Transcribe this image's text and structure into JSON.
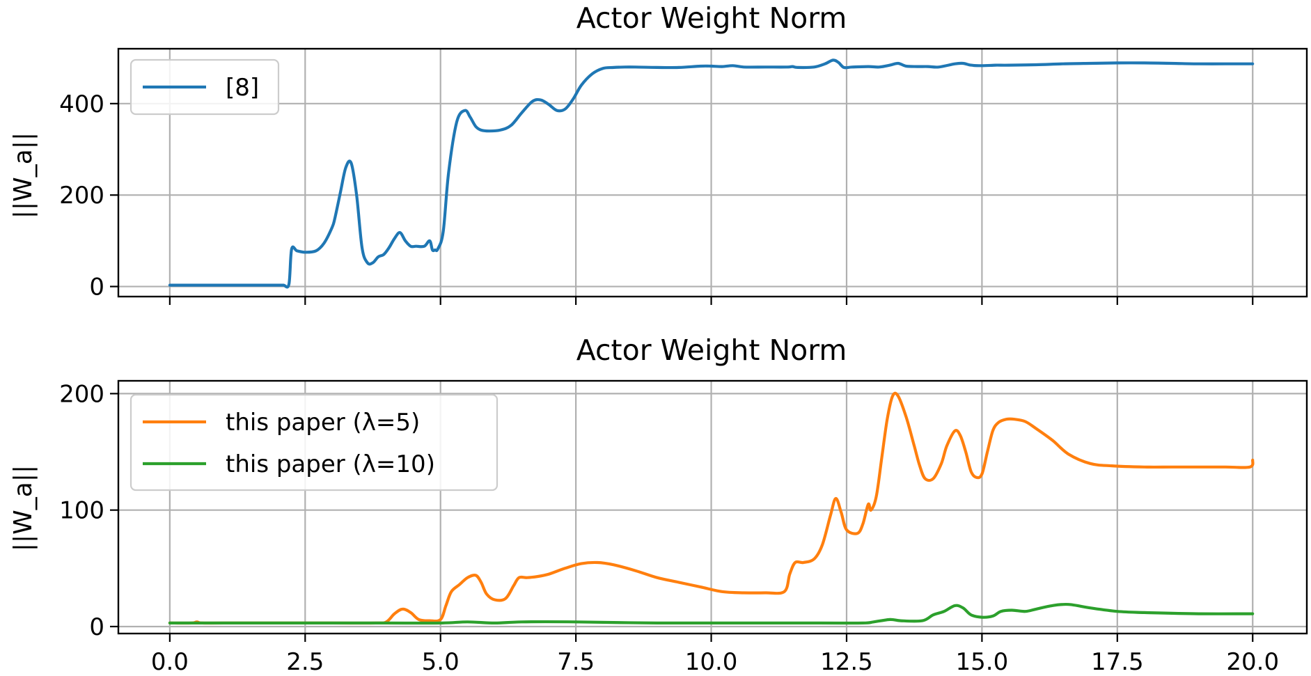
{
  "chart_data": [
    {
      "type": "line",
      "title": "Actor Weight Norm",
      "ylabel": "||W_a||",
      "xlabel": "",
      "xlim": [
        -0.95,
        21.0
      ],
      "ylim": [
        -22,
        520
      ],
      "xticks": [
        0.0,
        2.5,
        5.0,
        7.5,
        10.0,
        12.5,
        15.0,
        17.5,
        20.0
      ],
      "xtick_labels": [],
      "yticks": [
        0,
        200,
        400
      ],
      "ytick_labels": [
        "0",
        "200",
        "400"
      ],
      "grid": true,
      "legend": "top-left",
      "series": [
        {
          "name": "[8]",
          "color": "#1f77b4",
          "x": [
            0.0,
            1.0,
            2.0,
            2.1,
            2.2,
            2.25,
            2.35,
            2.5,
            2.7,
            2.85,
            3.0,
            3.05,
            3.15,
            3.25,
            3.35,
            3.45,
            3.55,
            3.65,
            3.75,
            3.85,
            3.95,
            4.05,
            4.15,
            4.25,
            4.35,
            4.45,
            4.55,
            4.7,
            4.8,
            4.85,
            4.9,
            4.95,
            5.05,
            5.15,
            5.3,
            5.45,
            5.55,
            5.65,
            5.75,
            5.9,
            6.1,
            6.3,
            6.5,
            6.7,
            6.85,
            7.0,
            7.15,
            7.3,
            7.45,
            7.6,
            7.8,
            8.0,
            8.2,
            8.4,
            8.6,
            9.0,
            9.4,
            9.8,
            10.0,
            10.2,
            10.4,
            10.6,
            11.0,
            11.4,
            11.5,
            11.6,
            11.9,
            12.1,
            12.25,
            12.35,
            12.45,
            12.6,
            12.9,
            13.1,
            13.3,
            13.45,
            13.6,
            13.8,
            14.0,
            14.2,
            14.5,
            14.65,
            14.8,
            15.0,
            15.25,
            15.5,
            16.0,
            16.5,
            17.0,
            17.5,
            18.0,
            18.5,
            19.0,
            19.5,
            20.0
          ],
          "y": [
            3,
            3,
            3,
            3,
            5,
            82,
            78,
            75,
            78,
            95,
            130,
            150,
            205,
            260,
            270,
            200,
            85,
            52,
            52,
            65,
            70,
            85,
            105,
            118,
            100,
            88,
            88,
            88,
            100,
            80,
            80,
            82,
            120,
            250,
            360,
            385,
            370,
            350,
            342,
            340,
            342,
            352,
            380,
            405,
            408,
            398,
            385,
            388,
            410,
            440,
            465,
            477,
            479,
            480,
            480,
            479,
            479,
            482,
            482,
            481,
            483,
            480,
            480,
            480,
            481,
            479,
            480,
            487,
            495,
            490,
            479,
            480,
            481,
            480,
            484,
            488,
            482,
            481,
            481,
            480,
            487,
            488,
            484,
            483,
            484,
            484,
            485,
            487,
            488,
            489,
            489,
            488,
            487,
            487,
            487
          ]
        }
      ]
    },
    {
      "type": "line",
      "title": "Actor Weight Norm",
      "ylabel": "||W_a||",
      "xlabel": "",
      "xlim": [
        -0.95,
        21.0
      ],
      "ylim": [
        -6,
        211
      ],
      "xticks": [
        0.0,
        2.5,
        5.0,
        7.5,
        10.0,
        12.5,
        15.0,
        17.5,
        20.0
      ],
      "xtick_labels": [
        "0.0",
        "2.5",
        "5.0",
        "7.5",
        "10.0",
        "12.5",
        "15.0",
        "17.5",
        "20.0"
      ],
      "yticks": [
        0,
        100,
        200
      ],
      "ytick_labels": [
        "0",
        "100",
        "200"
      ],
      "grid": true,
      "legend": "top-left",
      "series": [
        {
          "name": "this paper (λ=5)",
          "color": "#ff7f0e",
          "x": [
            0.0,
            0.4,
            0.5,
            0.6,
            1.0,
            2.0,
            3.0,
            3.8,
            4.0,
            4.15,
            4.3,
            4.45,
            4.6,
            4.8,
            5.0,
            5.1,
            5.2,
            5.35,
            5.5,
            5.65,
            5.75,
            5.85,
            6.0,
            6.2,
            6.35,
            6.45,
            6.6,
            6.8,
            7.0,
            7.3,
            7.6,
            7.9,
            8.2,
            8.6,
            9.0,
            9.4,
            9.8,
            10.2,
            10.6,
            11.0,
            11.35,
            11.45,
            11.55,
            11.7,
            11.9,
            12.05,
            12.2,
            12.3,
            12.4,
            12.5,
            12.7,
            12.8,
            12.9,
            12.95,
            13.05,
            13.15,
            13.25,
            13.35,
            13.45,
            13.6,
            13.75,
            13.85,
            13.95,
            14.1,
            14.25,
            14.35,
            14.5,
            14.6,
            14.7,
            14.8,
            14.9,
            15.0,
            15.1,
            15.2,
            15.3,
            15.45,
            15.6,
            15.8,
            16.0,
            16.3,
            16.6,
            17.0,
            17.4,
            18.0,
            18.5,
            19.0,
            19.5,
            19.95,
            20.0
          ],
          "y": [
            3,
            3,
            4,
            3,
            3,
            3,
            3,
            3,
            4,
            11,
            15,
            12,
            6,
            5,
            6,
            18,
            30,
            36,
            42,
            44,
            38,
            28,
            23,
            24,
            35,
            42,
            42,
            43,
            45,
            50,
            54,
            55,
            53,
            48,
            42,
            38,
            34,
            30,
            29,
            29,
            30,
            45,
            55,
            55,
            58,
            70,
            95,
            110,
            98,
            83,
            80,
            88,
            105,
            100,
            112,
            145,
            178,
            198,
            198,
            180,
            155,
            138,
            127,
            127,
            140,
            155,
            168,
            164,
            150,
            133,
            128,
            131,
            150,
            168,
            175,
            178,
            178,
            176,
            170,
            160,
            148,
            140,
            138,
            137,
            137,
            137,
            137,
            137,
            143
          ]
        },
        {
          "name": "this paper (λ=10)",
          "color": "#2ca02c",
          "x": [
            0.0,
            1.0,
            2.0,
            3.0,
            4.0,
            5.0,
            5.5,
            6.0,
            6.5,
            7.5,
            9.0,
            10.5,
            12.0,
            12.8,
            13.0,
            13.3,
            13.5,
            13.9,
            14.1,
            14.3,
            14.5,
            14.65,
            14.8,
            15.0,
            15.2,
            15.35,
            15.55,
            15.8,
            16.0,
            16.3,
            16.6,
            17.0,
            17.5,
            18.0,
            19.0,
            20.0
          ],
          "y": [
            3,
            3,
            3,
            3,
            3,
            3,
            4,
            3,
            4,
            4,
            3,
            3,
            3,
            3,
            4,
            6,
            5,
            5,
            10,
            13,
            18,
            16,
            10,
            8,
            9,
            13,
            14,
            13,
            15,
            18,
            19,
            16,
            13,
            12,
            11,
            11
          ]
        }
      ]
    }
  ]
}
